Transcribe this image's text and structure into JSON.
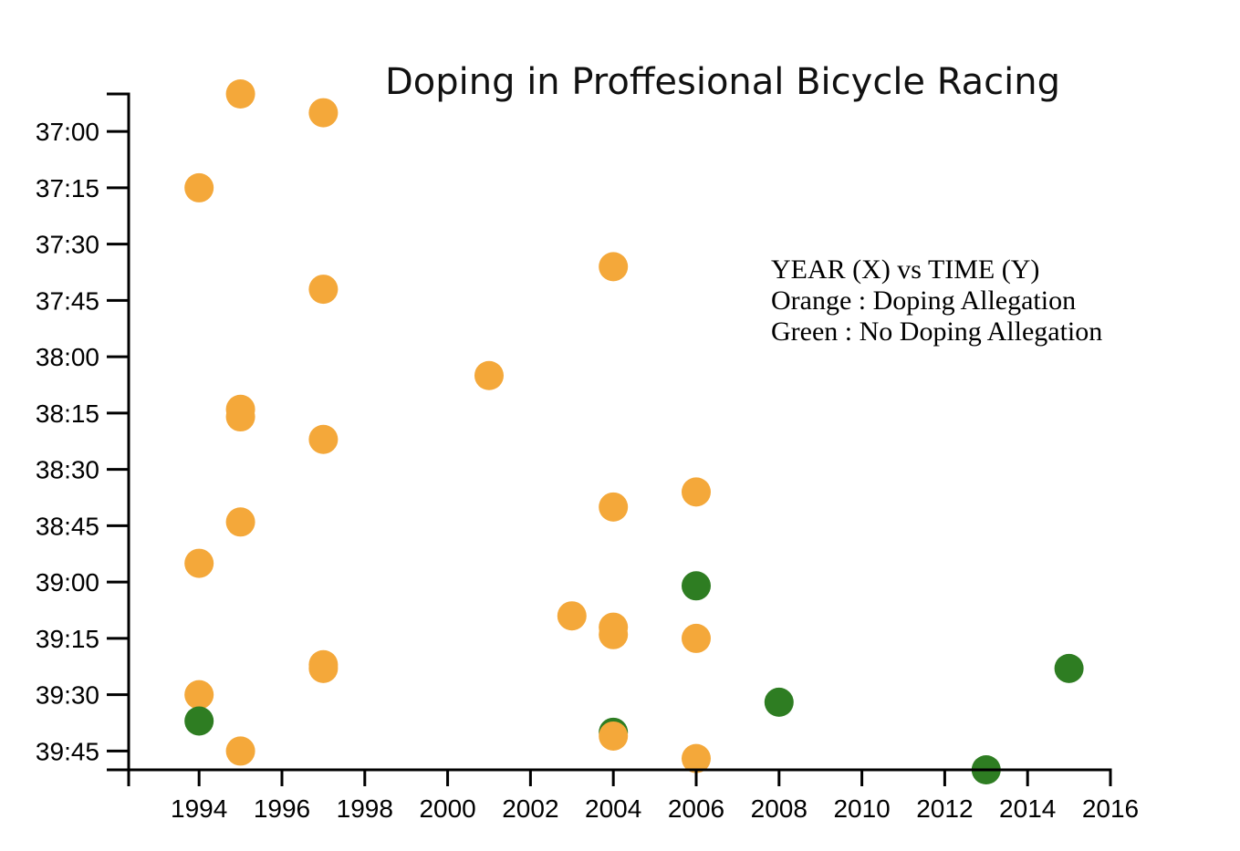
{
  "chart_data": {
    "type": "scatter",
    "title": "Doping in Proffesional Bicycle Racing",
    "xlabel": "",
    "ylabel": "",
    "xlim": [
      1992.3,
      2016
    ],
    "ylim_seconds": [
      2210,
      2390
    ],
    "x_ticks": [
      1994,
      1996,
      1998,
      2000,
      2002,
      2004,
      2006,
      2008,
      2010,
      2012,
      2014,
      2016
    ],
    "y_ticks": [
      "37:00",
      "37:15",
      "37:30",
      "37:45",
      "38:00",
      "38:15",
      "38:30",
      "38:45",
      "39:00",
      "39:15",
      "39:30",
      "39:45"
    ],
    "y_reversed": true,
    "grid": false,
    "legend": {
      "placement": "top-right",
      "lines": [
        "YEAR (X) vs TIME (Y)",
        "Orange : Doping Allegation",
        "Green : No Doping Allegation"
      ]
    },
    "colors": {
      "doping": "#f4a83a",
      "clean": "#2e7d22"
    },
    "points": [
      {
        "year": 1995,
        "time": "36:50",
        "doping": true
      },
      {
        "year": 1997,
        "time": "36:55",
        "doping": true
      },
      {
        "year": 1994,
        "time": "37:15",
        "doping": true
      },
      {
        "year": 2004,
        "time": "37:36",
        "doping": true
      },
      {
        "year": 1997,
        "time": "37:42",
        "doping": true
      },
      {
        "year": 2001,
        "time": "38:05",
        "doping": true
      },
      {
        "year": 1995,
        "time": "38:14",
        "doping": true
      },
      {
        "year": 1995,
        "time": "38:16",
        "doping": true
      },
      {
        "year": 1997,
        "time": "38:22",
        "doping": true
      },
      {
        "year": 2006,
        "time": "38:36",
        "doping": true
      },
      {
        "year": 2004,
        "time": "38:40",
        "doping": true
      },
      {
        "year": 1995,
        "time": "38:44",
        "doping": true
      },
      {
        "year": 1994,
        "time": "38:55",
        "doping": true
      },
      {
        "year": 2006,
        "time": "39:01",
        "doping": false
      },
      {
        "year": 2003,
        "time": "39:09",
        "doping": true
      },
      {
        "year": 2004,
        "time": "39:12",
        "doping": true
      },
      {
        "year": 2004,
        "time": "39:14",
        "doping": true
      },
      {
        "year": 2006,
        "time": "39:15",
        "doping": true
      },
      {
        "year": 1997,
        "time": "39:22",
        "doping": true
      },
      {
        "year": 1997,
        "time": "39:23",
        "doping": true
      },
      {
        "year": 2015,
        "time": "39:23",
        "doping": false
      },
      {
        "year": 1994,
        "time": "39:30",
        "doping": true
      },
      {
        "year": 2008,
        "time": "39:32",
        "doping": false
      },
      {
        "year": 1994,
        "time": "39:37",
        "doping": false
      },
      {
        "year": 2004,
        "time": "39:40",
        "doping": false
      },
      {
        "year": 2004,
        "time": "39:41",
        "doping": true
      },
      {
        "year": 1995,
        "time": "39:45",
        "doping": true
      },
      {
        "year": 2006,
        "time": "39:47",
        "doping": true
      },
      {
        "year": 2013,
        "time": "39:50",
        "doping": false
      }
    ]
  }
}
